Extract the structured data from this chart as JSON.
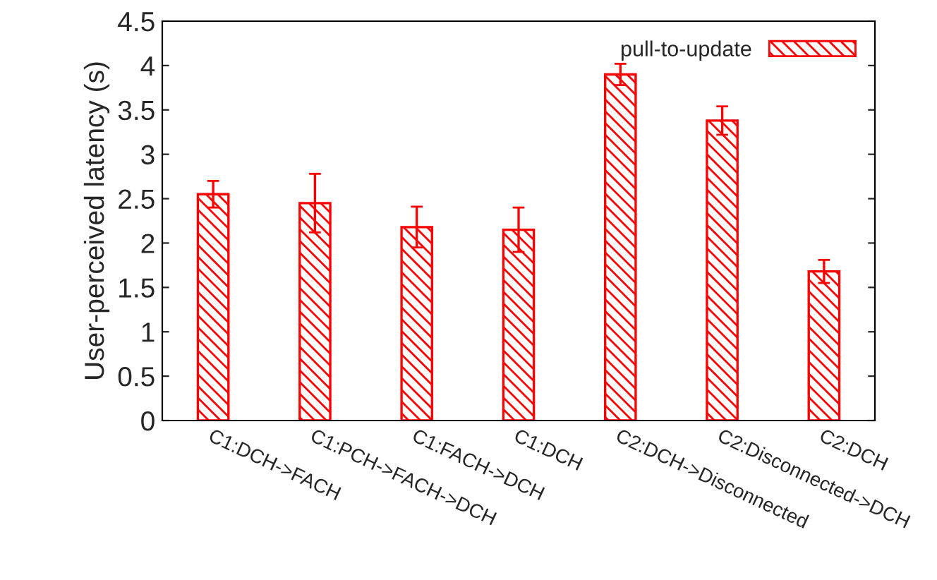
{
  "chart_data": {
    "type": "bar",
    "ylabel": "User-perceived latency (s)",
    "categories": [
      "C1:DCH->FACH",
      "C1:PCH->FACH->DCH",
      "C1:FACH->DCH",
      "C1:DCH",
      "C2:DCH->Disconnected",
      "C2:Disconnected->DCH",
      "C2:DCH"
    ],
    "series": [
      {
        "name": "pull-to-update",
        "color": "#ff0000",
        "values": [
          2.55,
          2.45,
          2.18,
          2.15,
          3.9,
          3.38,
          1.68
        ],
        "errors": [
          0.15,
          0.33,
          0.23,
          0.25,
          0.12,
          0.16,
          0.13
        ]
      }
    ],
    "ylim": [
      0,
      4.5
    ],
    "yticks": [
      0,
      0.5,
      1,
      1.5,
      2,
      2.5,
      3,
      3.5,
      4,
      4.5
    ],
    "grid": false,
    "legend": "top right"
  }
}
